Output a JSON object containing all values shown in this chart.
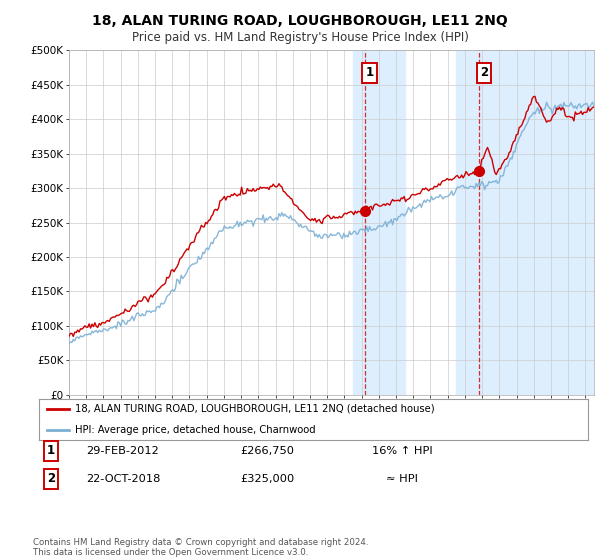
{
  "title": "18, ALAN TURING ROAD, LOUGHBOROUGH, LE11 2NQ",
  "subtitle": "Price paid vs. HM Land Registry's House Price Index (HPI)",
  "ylabel_ticks": [
    "£0",
    "£50K",
    "£100K",
    "£150K",
    "£200K",
    "£250K",
    "£300K",
    "£350K",
    "£400K",
    "£450K",
    "£500K"
  ],
  "ytick_values": [
    0,
    50000,
    100000,
    150000,
    200000,
    250000,
    300000,
    350000,
    400000,
    450000,
    500000
  ],
  "xlim_start": 1995.0,
  "xlim_end": 2025.5,
  "ylim": [
    0,
    500000
  ],
  "hpi_color": "#7bafd4",
  "property_color": "#cc0000",
  "sale1_date": "29-FEB-2012",
  "sale1_price": 266750,
  "sale1_label": "16% ↑ HPI",
  "sale1_x": 2012.17,
  "sale2_date": "22-OCT-2018",
  "sale2_price": 325000,
  "sale2_label": "≈ HPI",
  "sale2_x": 2018.81,
  "legend_line1": "18, ALAN TURING ROAD, LOUGHBOROUGH, LE11 2NQ (detached house)",
  "legend_line2": "HPI: Average price, detached house, Charnwood",
  "footnote": "Contains HM Land Registry data © Crown copyright and database right 2024.\nThis data is licensed under the Open Government Licence v3.0.",
  "fig_bg_color": "#ffffff",
  "plot_bg_color": "#ffffff",
  "highlight_region1_start": 2011.5,
  "highlight_region1_end": 2014.5,
  "highlight_region2_start": 2017.5,
  "highlight_region2_end": 2025.5,
  "highlight_color": "#ddeeff"
}
